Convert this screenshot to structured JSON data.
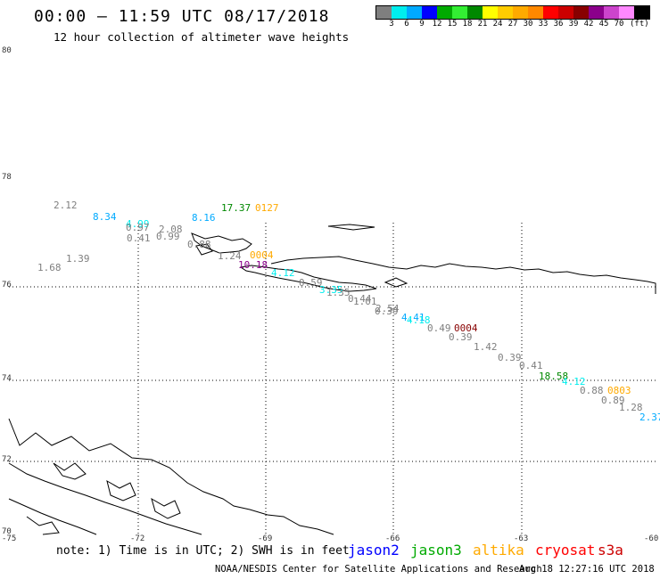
{
  "header": {
    "title": "00:00 – 11:59 UTC 08/17/2018",
    "subtitle": "12 hour collection of altimeter wave heights"
  },
  "legend_scale": {
    "colors": [
      "#7f7f7f",
      "#00eeee",
      "#00aaff",
      "#0000ff",
      "#00aa00",
      "#33ee33",
      "#008800",
      "#ffff00",
      "#ffcc00",
      "#ffaa00",
      "#ff8800",
      "#ff0000",
      "#cc0000",
      "#880000",
      "#8b008b",
      "#cc44cc",
      "#ff88ff",
      "#000000"
    ],
    "labels": [
      "3",
      "6",
      "9",
      "12",
      "15",
      "18",
      "21",
      "24",
      "27",
      "30",
      "33",
      "36",
      "39",
      "42",
      "45",
      "70",
      "(ft)"
    ]
  },
  "axes": {
    "lat_labels": [
      "80",
      "78",
      "76",
      "74",
      "72",
      "70"
    ],
    "lon_labels": [
      "-75",
      "-72",
      "-69",
      "-66",
      "-63",
      "-60"
    ]
  },
  "observations": [
    {
      "text": "2.12",
      "color": "#7f7f7f"
    },
    {
      "text": "8.34",
      "color": "#00aaff"
    },
    {
      "text": "4.99",
      "color": "#00eeee"
    },
    {
      "text": "0.97",
      "color": "#7f7f7f"
    },
    {
      "text": "0.41",
      "color": "#7f7f7f"
    },
    {
      "text": "2.08",
      "color": "#7f7f7f"
    },
    {
      "text": "0.99",
      "color": "#7f7f7f"
    },
    {
      "text": "8.16",
      "color": "#00aaff"
    },
    {
      "text": "17.37",
      "color": "#008800"
    },
    {
      "text": "0127",
      "color": "#ffaa00"
    },
    {
      "text": "0.88",
      "color": "#7f7f7f"
    },
    {
      "text": "1.39",
      "color": "#7f7f7f"
    },
    {
      "text": "1.68",
      "color": "#7f7f7f"
    },
    {
      "text": "1.24",
      "color": "#7f7f7f"
    },
    {
      "text": "0004",
      "color": "#ffaa00"
    },
    {
      "text": "10.18",
      "color": "#8b008b"
    },
    {
      "text": "4.12",
      "color": "#00eeee"
    },
    {
      "text": "0.59",
      "color": "#7f7f7f"
    },
    {
      "text": "3.35",
      "color": "#00eeee"
    },
    {
      "text": "1.35",
      "color": "#7f7f7f"
    },
    {
      "text": "0.44",
      "color": "#7f7f7f"
    },
    {
      "text": "1.01",
      "color": "#7f7f7f"
    },
    {
      "text": "2.54",
      "color": "#7f7f7f"
    },
    {
      "text": "0.39",
      "color": "#7f7f7f"
    },
    {
      "text": "4.41",
      "color": "#00aaff"
    },
    {
      "text": "4.18",
      "color": "#00eeee"
    },
    {
      "text": "0.49",
      "color": "#7f7f7f"
    },
    {
      "text": "0004",
      "color": "#880000"
    },
    {
      "text": "0.39",
      "color": "#7f7f7f"
    },
    {
      "text": "1.42",
      "color": "#7f7f7f"
    },
    {
      "text": "0.39",
      "color": "#7f7f7f"
    },
    {
      "text": "0.41",
      "color": "#7f7f7f"
    },
    {
      "text": "18.58",
      "color": "#008800"
    },
    {
      "text": "4.12",
      "color": "#00eeee"
    },
    {
      "text": "0.88",
      "color": "#7f7f7f"
    },
    {
      "text": "0803",
      "color": "#ffaa00"
    },
    {
      "text": "0.89",
      "color": "#7f7f7f"
    },
    {
      "text": "1.28",
      "color": "#7f7f7f"
    },
    {
      "text": "2.37",
      "color": "#00aaff"
    }
  ],
  "footer": {
    "note": "note: 1) Time is in UTC; 2) SWH is in feet",
    "satellites": [
      {
        "name": "jason2",
        "color": "#0000ff"
      },
      {
        "name": "jason3",
        "color": "#00aa00"
      },
      {
        "name": "altika",
        "color": "#ffaa00"
      },
      {
        "name": "cryosat",
        "color": "#ff0000"
      },
      {
        "name": "s3a",
        "color": "#cc0000"
      }
    ],
    "credit": "NOAA/NESDIS Center for Satellite Applications and Research",
    "timestamp": "Aug 18 12:27:16 UTC 2018"
  }
}
